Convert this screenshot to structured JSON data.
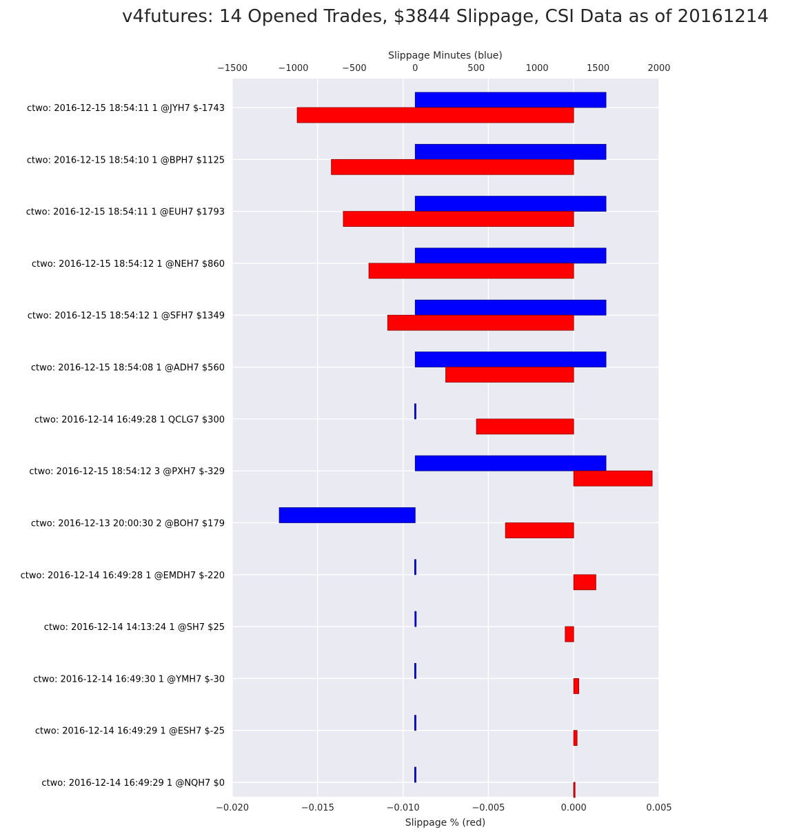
{
  "chart_data": {
    "type": "bar",
    "orientation": "horizontal",
    "title": "v4futures: 14 Opened Trades, $3844 Slippage, CSI Data as of 20161214",
    "xlabel_bottom": "Slippage % (red)",
    "xlabel_top": "Slippage Minutes (blue)",
    "xlim_bottom": [
      -0.02,
      0.005
    ],
    "xlim_top": [
      -1500,
      2000
    ],
    "xticks_bottom": [
      "−0.020",
      "−0.015",
      "−0.010",
      "−0.005",
      "0.000",
      "0.005"
    ],
    "xticks_top": [
      "−1500",
      "−1000",
      "−500",
      "0",
      "500",
      "1000",
      "1500",
      "2000"
    ],
    "xtick_values_bottom": [
      -0.02,
      -0.015,
      -0.01,
      -0.005,
      0.0,
      0.005
    ],
    "xtick_values_top": [
      -1500,
      -1000,
      -500,
      0,
      500,
      1000,
      1500,
      2000
    ],
    "grid": true,
    "categories": [
      "ctwo: 2016-12-15 18:54:11 1 @JYH7 $-1743",
      "ctwo: 2016-12-15 18:54:10 1 @BPH7 $1125",
      "ctwo: 2016-12-15 18:54:11 1 @EUH7 $1793",
      "ctwo: 2016-12-15 18:54:12 1 @NEH7 $860",
      "ctwo: 2016-12-15 18:54:12 1 @SFH7 $1349",
      "ctwo: 2016-12-15 18:54:08 1 @ADH7 $560",
      "ctwo: 2016-12-14 16:49:28 1 QCLG7 $300",
      "ctwo: 2016-12-15 18:54:12 3 @PXH7 $-329",
      "ctwo: 2016-12-13 20:00:30 2 @BOH7 $179",
      "ctwo: 2016-12-14 16:49:28 1 @EMDH7 $-220",
      "ctwo: 2016-12-14 14:13:24 1 @SH7 $25",
      "ctwo: 2016-12-14 16:49:30 1 @YMH7 $-30",
      "ctwo: 2016-12-14 16:49:29 1 @ESH7 $-25",
      "ctwo: 2016-12-14 16:49:29 1 @NQH7 $0"
    ],
    "series": [
      {
        "name": "Slippage Minutes (blue)",
        "axis": "top",
        "color": "#0000ff",
        "values": [
          1565,
          1565,
          1565,
          1565,
          1565,
          1565,
          -5,
          1565,
          -1115,
          -5,
          -3,
          -5,
          -5,
          -5
        ]
      },
      {
        "name": "Slippage % (red)",
        "axis": "bottom",
        "color": "#ff0000",
        "values": [
          -0.0162,
          -0.0142,
          -0.0135,
          -0.012,
          -0.0109,
          -0.0075,
          -0.0057,
          0.0046,
          -0.004,
          0.0013,
          -0.0005,
          0.0003,
          0.0002,
          0.0
        ]
      }
    ]
  }
}
